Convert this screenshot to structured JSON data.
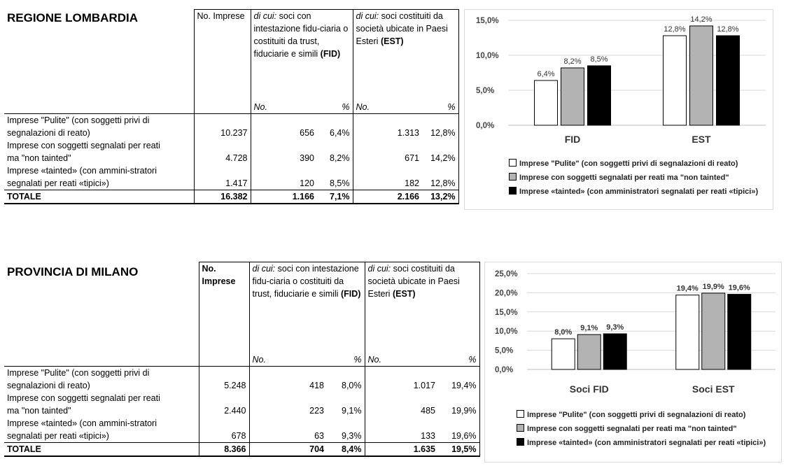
{
  "tables": [
    {
      "title": "REGIONE LOMBARDIA",
      "bold_header": false,
      "col_headers": {
        "no_imprese": "No. Impresе",
        "fid_prefix": "di cui:",
        "fid_text": " soci con intestazione fidu-ciaria o costituiti da trust, fiduciarie e simili ",
        "fid_code": "(FID)",
        "est_prefix": "di cui:",
        "est_text": " soci costituiti da società ubicate in Paesi Esteri ",
        "est_code": "(EST)",
        "sub_no": "No.",
        "sub_pct": "%"
      },
      "rows": [
        {
          "label1": "Imprese \"Pulite\" (con soggetti privi di",
          "label2": "segnalazioni di reato)",
          "n": "10.237",
          "fid_n": "656",
          "fid_p": "6,4%",
          "est_n": "1.313",
          "est_p": "12,8%"
        },
        {
          "label1": "Imprese con soggetti segnalati per reati",
          "label2": "ma \"non tainted\"",
          "n": "4.728",
          "fid_n": "390",
          "fid_p": "8,2%",
          "est_n": "671",
          "est_p": "14,2%"
        },
        {
          "label1": "Imprese «tainted» (con ammini-stratori",
          "label2": "segnalati per reati «tipici»)",
          "n": "1.417",
          "fid_n": "120",
          "fid_p": "8,5%",
          "est_n": "182",
          "est_p": "12,8%"
        }
      ],
      "total": {
        "label": "TOTALE",
        "n": "16.382",
        "fid_n": "1.166",
        "fid_p": "7,1%",
        "est_n": "2.166",
        "est_p": "13,2%"
      }
    },
    {
      "title": "PROVINCIA DI MILANO",
      "bold_header": true,
      "col_headers": {
        "no_imprese": "No. Imprese",
        "fid_prefix": "di cui:",
        "fid_text": " soci con intestazione fidu-ciaria o costituiti da trust, fiduciarie e simili ",
        "fid_code": "(FID)",
        "est_prefix": "di cui:",
        "est_text": " soci costituiti da società ubicate in Paesi Esteri ",
        "est_code": "(EST)",
        "sub_no": "No.",
        "sub_pct": "%"
      },
      "rows": [
        {
          "label1": "Imprese \"Pulite\" (con soggetti privi di",
          "label2": "segnalazioni di reato)",
          "n": "5.248",
          "fid_n": "418",
          "fid_p": "8,0%",
          "est_n": "1.017",
          "est_p": "19,4%"
        },
        {
          "label1": "Imprese con soggetti segnalati per reati",
          "label2": "ma \"non tainted\"",
          "n": "2.440",
          "fid_n": "223",
          "fid_p": "9,1%",
          "est_n": "485",
          "est_p": "19,9%"
        },
        {
          "label1": "Imprese «tainted» (con ammini-stratori",
          "label2": "segnalati per reati «tipici»)",
          "n": "678",
          "fid_n": "63",
          "fid_p": "9,3%",
          "est_n": "133",
          "est_p": "19,6%"
        }
      ],
      "total": {
        "label": "TOTALE",
        "n": "8.366",
        "fid_n": "704",
        "fid_p": "8,4%",
        "est_n": "1.635",
        "est_p": "19,5%"
      }
    }
  ],
  "chart_data": [
    {
      "type": "bar",
      "categories": [
        "FID",
        "EST"
      ],
      "series": [
        {
          "name": "Imprese \"Pulite\" (con soggetti privi di segnalazioni di reato)",
          "values": [
            6.4,
            12.8
          ],
          "color": "#ffffff"
        },
        {
          "name": "Imprese con soggetti segnalati per reati ma \"non tainted\"",
          "values": [
            8.2,
            14.2
          ],
          "color": "#b3b3b3"
        },
        {
          "name": "Imprese «tainted» (con amministratori segnalati per reati «tipici»)",
          "values": [
            8.5,
            12.8
          ],
          "color": "#000000"
        }
      ],
      "value_labels": [
        [
          "6,4%",
          "12,8%"
        ],
        [
          "8,2%",
          "14,2%"
        ],
        [
          "8,5%",
          "12,8%"
        ]
      ],
      "yticks": [
        "0,0%",
        "5,0%",
        "10,0%",
        "15,0%"
      ],
      "ylim": [
        0,
        15
      ],
      "bold_value_labels": false,
      "legend": "bottom",
      "grid": true
    },
    {
      "type": "bar",
      "categories": [
        "Soci FID",
        "Soci EST"
      ],
      "series": [
        {
          "name": "Imprese \"Pulite\" (con soggetti privi di segnalazioni di reato)",
          "values": [
            8.0,
            19.4
          ],
          "color": "#ffffff"
        },
        {
          "name": "Imprese con soggetti segnalati per reati ma \"non tainted\"",
          "values": [
            9.1,
            19.9
          ],
          "color": "#b3b3b3"
        },
        {
          "name": "Imprese «tainted» (con amministratori segnalati per reati «tipici»)",
          "values": [
            9.3,
            19.6
          ],
          "color": "#000000"
        }
      ],
      "value_labels": [
        [
          "8,0%",
          "19,4%"
        ],
        [
          "9,1%",
          "19,9%"
        ],
        [
          "9,3%",
          "19,6%"
        ]
      ],
      "yticks": [
        "0,0%",
        "5,0%",
        "10,0%",
        "15,0%",
        "20,0%",
        "25,0%"
      ],
      "ylim": [
        0,
        25
      ],
      "bold_value_labels": true,
      "legend": "bottom",
      "grid": true
    }
  ]
}
